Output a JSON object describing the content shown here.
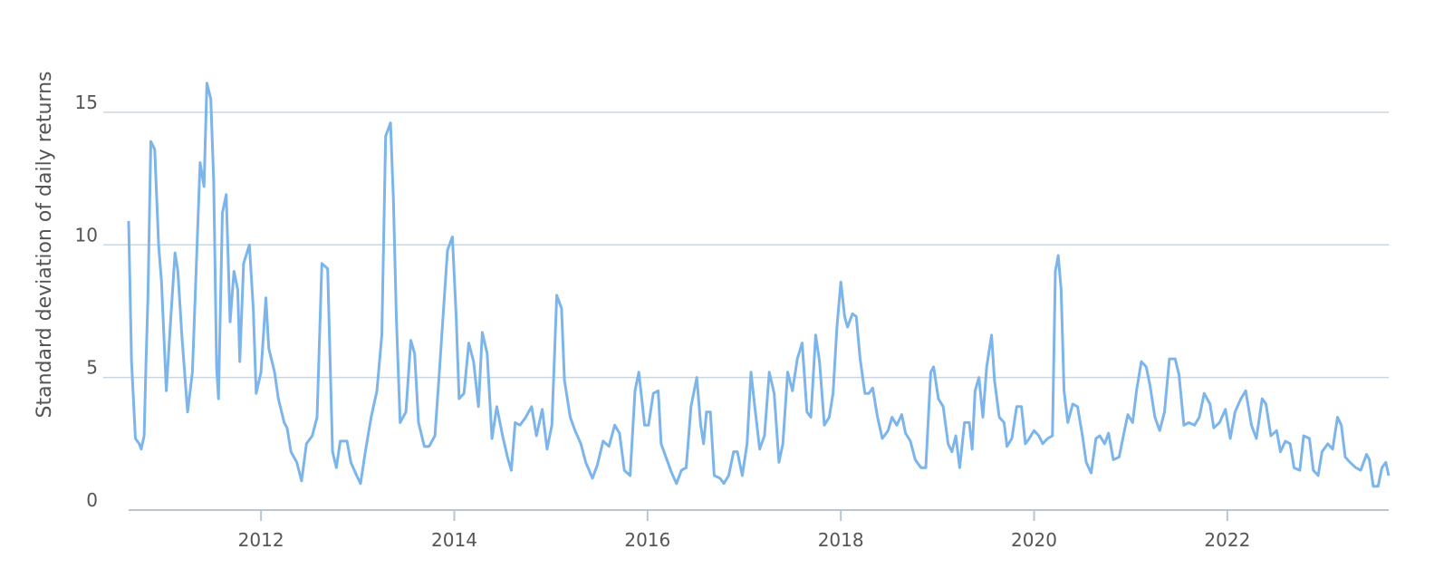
{
  "chart_data": {
    "type": "line",
    "y_label": "Standard deviation of daily returns",
    "xlim": [
      2010.63,
      2023.67
    ],
    "xticks": [
      2012,
      2014,
      2016,
      2018,
      2020,
      2022
    ],
    "ylim": [
      0,
      16.5
    ],
    "yticks": [
      0,
      5,
      10,
      15
    ],
    "grid": true,
    "series": [
      {
        "color": "#7cb5ec",
        "x": [
          2010.63,
          2010.66,
          2010.7,
          2010.74,
          2010.76,
          2010.79,
          2010.81,
          2010.83,
          2010.86,
          2010.9,
          2010.94,
          2010.97,
          2011.02,
          2011.06,
          2011.11,
          2011.14,
          2011.18,
          2011.24,
          2011.29,
          2011.37,
          2011.41,
          2011.44,
          2011.48,
          2011.51,
          2011.54,
          2011.56,
          2011.6,
          2011.64,
          2011.68,
          2011.72,
          2011.76,
          2011.78,
          2011.82,
          2011.88,
          2011.92,
          2011.95,
          2012.0,
          2012.05,
          2012.08,
          2012.14,
          2012.18,
          2012.24,
          2012.27,
          2012.31,
          2012.37,
          2012.42,
          2012.47,
          2012.53,
          2012.58,
          2012.63,
          2012.69,
          2012.74,
          2012.78,
          2012.82,
          2012.89,
          2012.93,
          2012.99,
          2013.03,
          2013.08,
          2013.14,
          2013.2,
          2013.25,
          2013.29,
          2013.34,
          2013.37,
          2013.4,
          2013.44,
          2013.5,
          2013.55,
          2013.59,
          2013.63,
          2013.69,
          2013.74,
          2013.8,
          2013.84,
          2013.88,
          2013.93,
          2013.98,
          2014.02,
          2014.05,
          2014.1,
          2014.15,
          2014.2,
          2014.25,
          2014.29,
          2014.34,
          2014.39,
          2014.44,
          2014.5,
          2014.55,
          2014.59,
          2014.63,
          2014.68,
          2014.74,
          2014.8,
          2014.85,
          2014.91,
          2014.96,
          2015.01,
          2015.06,
          2015.11,
          2015.14,
          2015.2,
          2015.25,
          2015.31,
          2015.36,
          2015.43,
          2015.48,
          2015.54,
          2015.6,
          2015.66,
          2015.71,
          2015.76,
          2015.82,
          2015.87,
          2015.91,
          2015.97,
          2016.01,
          2016.06,
          2016.11,
          2016.14,
          2016.19,
          2016.25,
          2016.3,
          2016.35,
          2016.4,
          2016.45,
          2016.51,
          2016.55,
          2016.58,
          2016.61,
          2016.65,
          2016.69,
          2016.75,
          2016.79,
          2016.84,
          2016.89,
          2016.93,
          2016.98,
          2017.03,
          2017.07,
          2017.11,
          2017.16,
          2017.21,
          2017.26,
          2017.31,
          2017.36,
          2017.4,
          2017.45,
          2017.5,
          2017.55,
          2017.6,
          2017.65,
          2017.69,
          2017.74,
          2017.78,
          2017.83,
          2017.88,
          2017.92,
          2017.96,
          2018.0,
          2018.04,
          2018.07,
          2018.12,
          2018.16,
          2018.2,
          2018.25,
          2018.29,
          2018.33,
          2018.38,
          2018.43,
          2018.49,
          2018.53,
          2018.58,
          2018.63,
          2018.67,
          2018.72,
          2018.77,
          2018.83,
          2018.88,
          2018.93,
          2018.96,
          2019.01,
          2019.06,
          2019.11,
          2019.15,
          2019.19,
          2019.23,
          2019.28,
          2019.33,
          2019.36,
          2019.39,
          2019.43,
          2019.47,
          2019.51,
          2019.56,
          2019.59,
          2019.64,
          2019.69,
          2019.72,
          2019.77,
          2019.82,
          2019.87,
          2019.91,
          2019.95,
          2020.0,
          2020.05,
          2020.09,
          2020.14,
          2020.19,
          2020.22,
          2020.25,
          2020.28,
          2020.31,
          2020.35,
          2020.4,
          2020.45,
          2020.5,
          2020.54,
          2020.59,
          2020.64,
          2020.68,
          2020.73,
          2020.77,
          2020.82,
          2020.88,
          2020.93,
          2020.97,
          2021.02,
          2021.06,
          2021.11,
          2021.16,
          2021.2,
          2021.25,
          2021.3,
          2021.35,
          2021.4,
          2021.46,
          2021.5,
          2021.55,
          2021.6,
          2021.66,
          2021.71,
          2021.76,
          2021.82,
          2021.86,
          2021.92,
          2021.98,
          2022.03,
          2022.08,
          2022.14,
          2022.19,
          2022.25,
          2022.3,
          2022.36,
          2022.4,
          2022.45,
          2022.51,
          2022.55,
          2022.6,
          2022.65,
          2022.69,
          2022.75,
          2022.79,
          2022.85,
          2022.89,
          2022.94,
          2022.98,
          2023.04,
          2023.09,
          2023.14,
          2023.18,
          2023.22,
          2023.27,
          2023.33,
          2023.38,
          2023.44,
          2023.47,
          2023.51,
          2023.56,
          2023.6,
          2023.64,
          2023.67
        ],
        "values": [
          10.9,
          5.6,
          2.7,
          2.5,
          2.3,
          2.8,
          5.6,
          8.0,
          13.9,
          13.6,
          10.0,
          8.6,
          4.5,
          6.9,
          9.7,
          9.0,
          6.6,
          3.7,
          5.2,
          13.1,
          12.2,
          16.1,
          15.5,
          12.4,
          5.4,
          4.2,
          11.2,
          11.9,
          7.1,
          9.0,
          8.3,
          5.6,
          9.3,
          10.0,
          7.6,
          4.4,
          5.2,
          8.0,
          6.1,
          5.2,
          4.2,
          3.3,
          3.1,
          2.2,
          1.8,
          1.1,
          2.5,
          2.8,
          3.5,
          9.3,
          9.1,
          2.2,
          1.6,
          2.6,
          2.6,
          1.8,
          1.3,
          1.0,
          2.2,
          3.5,
          4.5,
          6.6,
          14.1,
          14.6,
          11.7,
          7.3,
          3.3,
          3.7,
          6.4,
          5.9,
          3.3,
          2.4,
          2.4,
          2.8,
          4.9,
          7.1,
          9.8,
          10.3,
          7.3,
          4.2,
          4.4,
          6.3,
          5.6,
          3.9,
          6.7,
          5.9,
          2.7,
          3.9,
          2.8,
          2.0,
          1.5,
          3.3,
          3.2,
          3.5,
          3.9,
          2.8,
          3.8,
          2.3,
          3.2,
          8.1,
          7.6,
          4.9,
          3.5,
          3.0,
          2.5,
          1.8,
          1.2,
          1.7,
          2.6,
          2.4,
          3.2,
          2.9,
          1.5,
          1.3,
          4.5,
          5.2,
          3.2,
          3.2,
          4.4,
          4.5,
          2.5,
          2.0,
          1.4,
          1.0,
          1.5,
          1.6,
          3.9,
          5.0,
          3.2,
          2.5,
          3.7,
          3.7,
          1.3,
          1.2,
          1.0,
          1.3,
          2.2,
          2.2,
          1.3,
          2.5,
          5.2,
          3.9,
          2.3,
          2.8,
          5.2,
          4.4,
          1.8,
          2.5,
          5.2,
          4.5,
          5.7,
          6.3,
          3.7,
          3.5,
          6.6,
          5.6,
          3.2,
          3.5,
          4.4,
          6.9,
          8.6,
          7.3,
          6.9,
          7.4,
          7.3,
          5.7,
          4.4,
          4.4,
          4.6,
          3.5,
          2.7,
          3.0,
          3.5,
          3.2,
          3.6,
          2.9,
          2.6,
          1.9,
          1.6,
          1.6,
          5.2,
          5.4,
          4.2,
          3.9,
          2.5,
          2.2,
          2.8,
          1.6,
          3.3,
          3.3,
          2.3,
          4.5,
          5.0,
          3.5,
          5.4,
          6.6,
          4.9,
          3.5,
          3.3,
          2.4,
          2.7,
          3.9,
          3.9,
          2.5,
          2.7,
          3.0,
          2.8,
          2.5,
          2.7,
          2.8,
          9.0,
          9.6,
          8.3,
          4.5,
          3.3,
          4.0,
          3.9,
          2.8,
          1.8,
          1.4,
          2.7,
          2.8,
          2.5,
          2.9,
          1.9,
          2.0,
          2.9,
          3.6,
          3.3,
          4.5,
          5.6,
          5.4,
          4.7,
          3.5,
          3.0,
          3.7,
          5.7,
          5.7,
          5.1,
          3.2,
          3.3,
          3.2,
          3.5,
          4.4,
          4.0,
          3.1,
          3.3,
          3.8,
          2.7,
          3.7,
          4.2,
          4.5,
          3.2,
          2.7,
          4.2,
          4.0,
          2.8,
          3.0,
          2.2,
          2.6,
          2.5,
          1.6,
          1.5,
          2.8,
          2.7,
          1.5,
          1.3,
          2.2,
          2.5,
          2.3,
          3.5,
          3.2,
          2.0,
          1.8,
          1.6,
          1.5,
          2.1,
          1.9,
          0.9,
          0.9,
          1.6,
          1.8,
          1.3
        ]
      }
    ]
  }
}
